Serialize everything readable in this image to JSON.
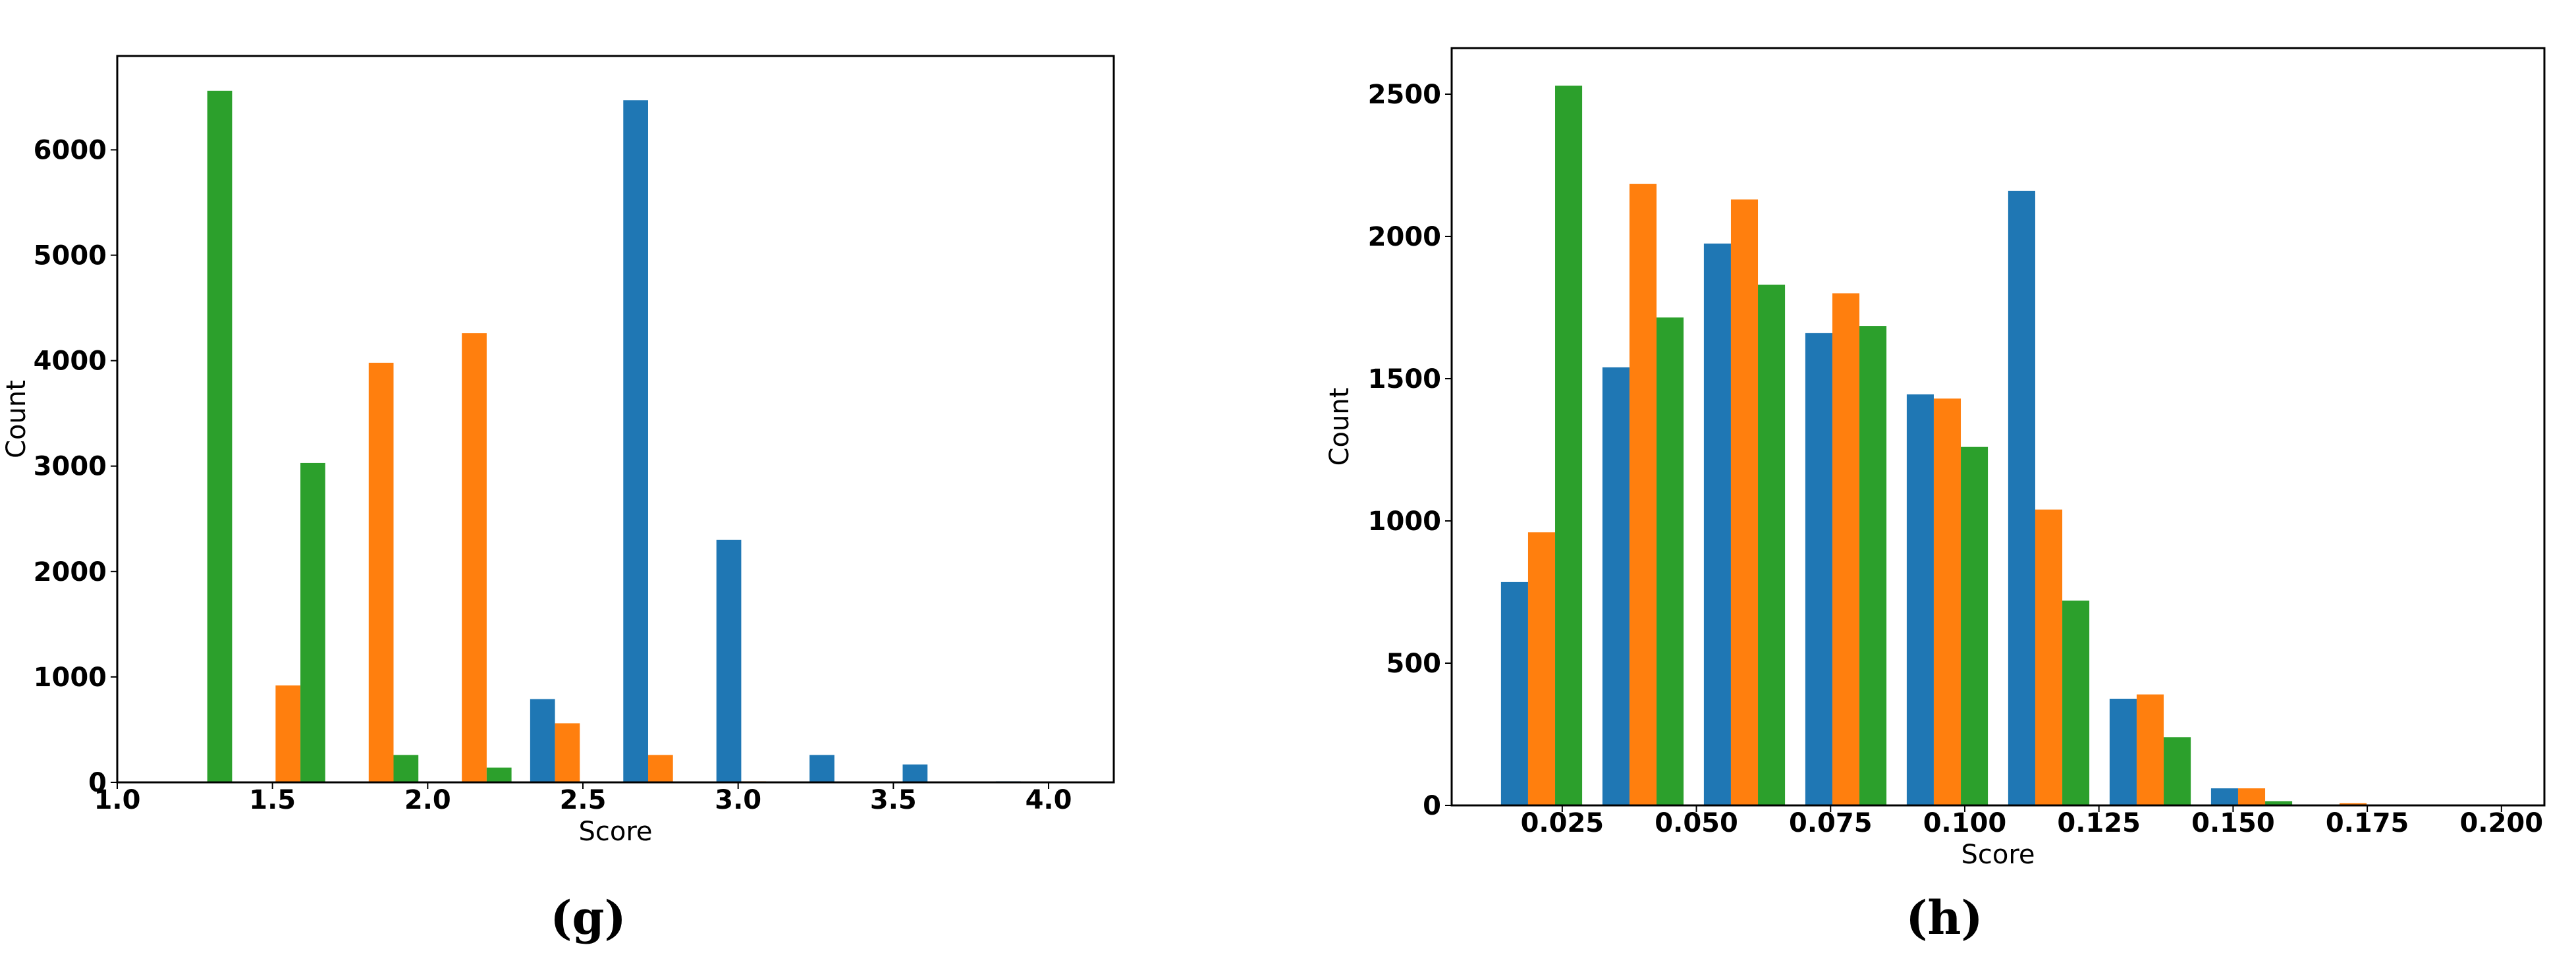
{
  "chart_data": [
    {
      "type": "histogram",
      "caption": "(g)",
      "x_label": "Score",
      "y_label": "Count",
      "bins": [
        1.1,
        1.4,
        1.7,
        2.0,
        2.3,
        2.6,
        2.9,
        3.2,
        3.5,
        3.8,
        4.1
      ],
      "series": [
        {
          "color": "#1f77b4",
          "values": [
            0,
            0,
            0,
            0,
            790,
            6470,
            2300,
            260,
            170,
            10
          ]
        },
        {
          "color": "#ff7f0e",
          "values": [
            0,
            920,
            3980,
            4260,
            560,
            260,
            10,
            0,
            0,
            0
          ]
        },
        {
          "color": "#2ca02c",
          "values": [
            6560,
            3030,
            260,
            140,
            0,
            0,
            0,
            0,
            0,
            0
          ]
        }
      ],
      "xlim": [
        1.0,
        4.21
      ],
      "ylim": [
        0,
        6890
      ],
      "xticks": [
        {
          "value": 1,
          "label": "1.0"
        },
        1.5,
        {
          "value": 2,
          "label": "2.0"
        },
        2.5,
        {
          "value": 3,
          "label": "3.0"
        },
        3.5,
        {
          "value": 4,
          "label": "4.0"
        }
      ],
      "yticks": [
        0,
        1000,
        2000,
        3000,
        4000,
        5000,
        6000
      ]
    },
    {
      "type": "histogram",
      "caption": "(h)",
      "x_label": "Score",
      "y_label": "Count",
      "bins": [
        0.0117,
        0.0306,
        0.0495,
        0.0684,
        0.0873,
        0.1062,
        0.1251,
        0.144,
        0.1629,
        0.1818,
        0.2007
      ],
      "series": [
        {
          "color": "#1f77b4",
          "values": [
            785,
            1540,
            1975,
            1660,
            1445,
            2160,
            375,
            60,
            0,
            0
          ]
        },
        {
          "color": "#ff7f0e",
          "values": [
            960,
            2185,
            2130,
            1800,
            1430,
            1040,
            390,
            60,
            8,
            0
          ]
        },
        {
          "color": "#2ca02c",
          "values": [
            2530,
            1715,
            1830,
            1685,
            1260,
            720,
            240,
            15,
            3,
            0
          ]
        }
      ],
      "xlim": [
        0.0044,
        0.208
      ],
      "ylim": [
        0,
        2662
      ],
      "xticks": [
        0.025,
        {
          "value": 0.05,
          "label": "0.050"
        },
        0.075,
        {
          "value": 0.1,
          "label": "0.100"
        },
        0.125,
        {
          "value": 0.15,
          "label": "0.150"
        },
        0.175,
        {
          "value": 0.2,
          "label": "0.200"
        }
      ],
      "yticks": [
        0,
        500,
        1000,
        1500,
        2000,
        2500
      ]
    }
  ]
}
